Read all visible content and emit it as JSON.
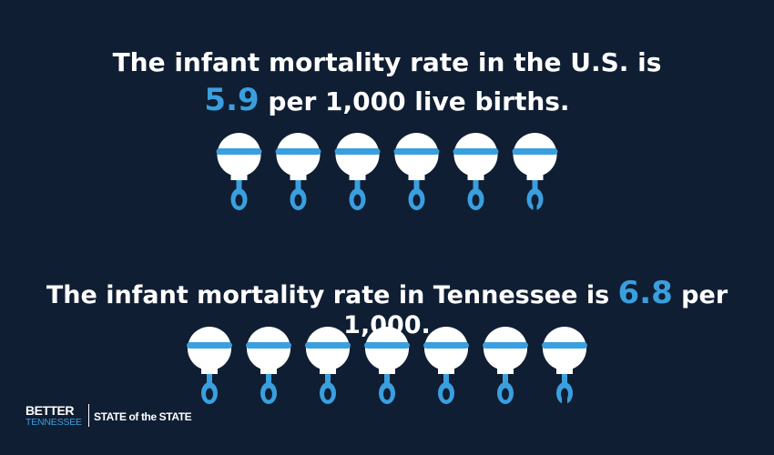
{
  "us": {
    "line1": "The infant mortality rate in the U.S. is",
    "rate": "5.9",
    "line2_rest": " per 1,000 live births.",
    "rate_value": 5.9,
    "icon": "rattle-icon"
  },
  "tn": {
    "prefix": "The infant mortality rate in Tennessee is ",
    "rate": "6.8",
    "suffix": " per 1,000.",
    "rate_value": 6.8,
    "icon": "rattle-icon"
  },
  "logo": {
    "better": "BETTER",
    "tennessee": "TENNESSEE",
    "state_of_the_state": "STATE of the STATE"
  },
  "colors": {
    "background": "#0f1e33",
    "accent": "#3a9fdf",
    "text": "#ffffff"
  }
}
